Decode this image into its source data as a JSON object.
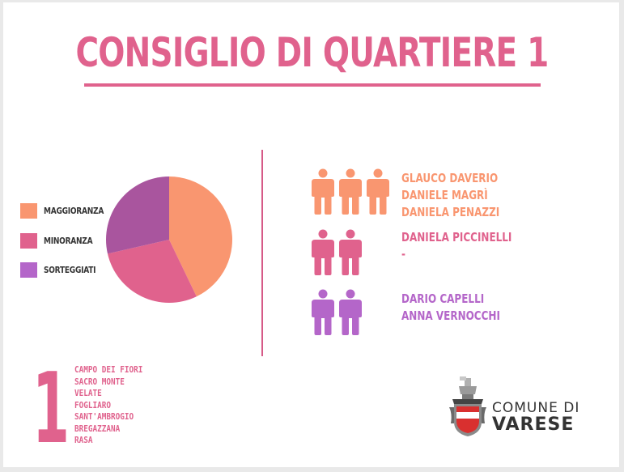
{
  "title": "CONSIGLIO DI QUARTIERE 1",
  "colors": {
    "title": "#e0628d",
    "maggioranza": "#f99670",
    "minoranza": "#e0628d",
    "sorteggiati": "#a9559e",
    "sorteggiati_icon": "#b466c9"
  },
  "legend": [
    {
      "label": "MAGGIORANZA",
      "color": "#f99670"
    },
    {
      "label": "MINORANZA",
      "color": "#e0628d"
    },
    {
      "label": "SORTEGGIATI",
      "color": "#b466c9"
    }
  ],
  "pie": {
    "slices": [
      {
        "label": "MAGGIORANZA",
        "value": 3,
        "color": "#f99670"
      },
      {
        "label": "MINORANZA",
        "value": 2,
        "color": "#e0628d"
      },
      {
        "label": "SORTEGGIATI",
        "value": 2,
        "color": "#a9559e"
      }
    ]
  },
  "groups": [
    {
      "icon_count": 3,
      "color": "#f99670",
      "names": [
        "GLAUCO DAVERIO",
        "DANIELE MAGRÌ",
        "DANIELA PENAZZI"
      ]
    },
    {
      "icon_count": 2,
      "color": "#e0628d",
      "names": [
        "DANIELA PICCINELLI",
        "-"
      ]
    },
    {
      "icon_count": 2,
      "color": "#b466c9",
      "names": [
        "DARIO CAPELLI",
        "ANNA VERNOCCHI"
      ]
    }
  ],
  "district_number": "1",
  "places": [
    "CAMPO DEI FIORI",
    "SACRO MONTE",
    "VELATE",
    "FOGLIARO",
    "SANT'AMBROGIO",
    "BREGAZZANA",
    "RASA"
  ],
  "logo": {
    "line1": "COMUNE DI",
    "line2": "VARESE",
    "icon": "varese-coat-of-arms-icon"
  }
}
